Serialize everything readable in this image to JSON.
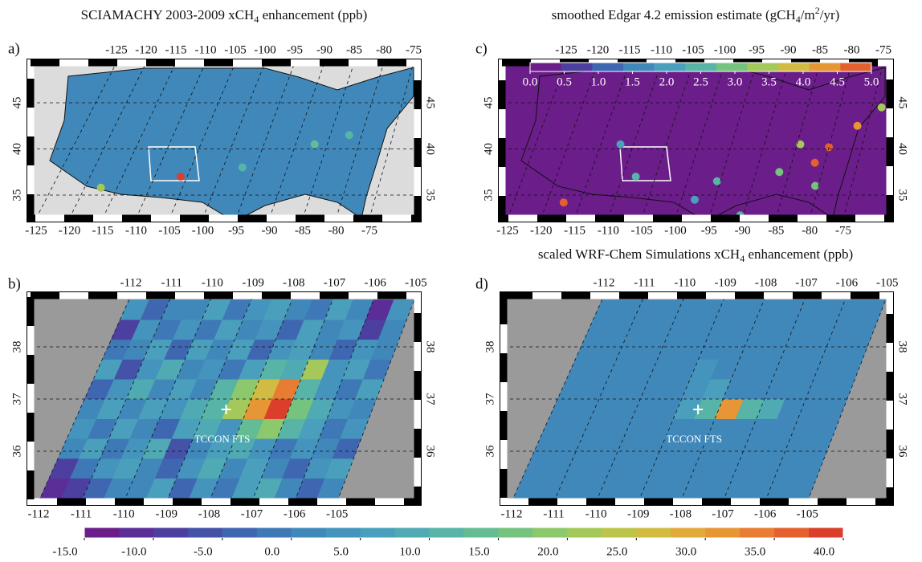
{
  "panels": [
    {
      "label": "a)",
      "title": [
        "SCIAMACHY 2003-2009 xCH",
        "4",
        " enhancement (ppb)"
      ],
      "lon_ticks": [
        -125,
        -120,
        -115,
        -110,
        -105,
        -100,
        -95,
        -90,
        -85,
        -80,
        -75
      ],
      "lat_ticks": [
        45,
        40,
        35
      ],
      "hotspots": [
        {
          "lon": -106,
          "lat": 37,
          "value": 38
        },
        {
          "lon": -117.5,
          "lat": 35.8,
          "value": 22
        },
        {
          "lon": -87,
          "lat": 40.5,
          "value": 14
        },
        {
          "lon": -82,
          "lat": 41.5,
          "value": 12
        },
        {
          "lon": -97,
          "lat": 38,
          "value": 10
        }
      ]
    },
    {
      "label": "b)",
      "lon_ticks": [
        -112,
        -111,
        -110,
        -109,
        -108,
        -107,
        -106,
        -105
      ],
      "lat_ticks": [
        38,
        37,
        36
      ],
      "lats": [
        35.1,
        35.48,
        35.86,
        36.24,
        36.62,
        37.0,
        37.38,
        37.76,
        38.14,
        38.52
      ],
      "lons": [
        -112,
        -111.5,
        -111,
        -110.5,
        -110,
        -109.5,
        -109,
        -108.5,
        -108,
        -107.5,
        -107,
        -106.5,
        -106,
        -105.5
      ],
      "values": [
        [
          -12,
          -10,
          -4,
          0,
          2,
          6,
          -3,
          3,
          -2,
          6,
          8,
          2,
          -4,
          1
        ],
        [
          -8,
          -2,
          3,
          5,
          0,
          -3,
          4,
          8,
          2,
          5,
          0,
          -5,
          3,
          6
        ],
        [
          0,
          5,
          -2,
          3,
          8,
          -6,
          2,
          5,
          9,
          3,
          -2,
          4,
          1,
          -3
        ],
        [
          3,
          -1,
          6,
          2,
          -4,
          5,
          9,
          4,
          14,
          18,
          10,
          5,
          -2,
          4
        ],
        [
          2,
          6,
          0,
          7,
          3,
          8,
          12,
          22,
          30,
          40,
          15,
          9,
          3,
          0
        ],
        [
          -3,
          4,
          8,
          1,
          6,
          2,
          10,
          18,
          25,
          33,
          12,
          4,
          -1,
          5
        ],
        [
          5,
          -6,
          3,
          9,
          0,
          4,
          -2,
          6,
          10,
          8,
          20,
          3,
          6,
          -2
        ],
        [
          -2,
          2,
          7,
          -3,
          5,
          1,
          6,
          -4,
          3,
          5,
          2,
          -5,
          4,
          1
        ],
        [
          -10,
          3,
          -1,
          4,
          -2,
          6,
          0,
          3,
          -3,
          7,
          1,
          4,
          -8,
          2
        ],
        [
          4,
          -3,
          2,
          0,
          5,
          -1,
          3,
          6,
          2,
          -2,
          5,
          0,
          -12,
          3
        ]
      ],
      "annotation": "TCCON FTS",
      "site": {
        "lon": -108.5,
        "lat": 36.8
      }
    },
    {
      "label": "c)",
      "title": [
        "smoothed Edgar 4.2 emission estimate (gCH",
        "4",
        "/m",
        "2",
        "/yr)"
      ],
      "lon_ticks": [
        -125,
        -120,
        -115,
        -110,
        -105,
        -100,
        -95,
        -90,
        -85,
        -80,
        -75
      ],
      "lat_ticks": [
        45,
        40,
        35
      ],
      "colorbar": {
        "clim": [
          0,
          5
        ],
        "colors": [
          "#6b1d8a",
          "#4c3fa0",
          "#3f66b0",
          "#4188ba",
          "#4aa0bc",
          "#58b4a6",
          "#76c37f",
          "#a4c95a",
          "#d2bb42",
          "#e79636",
          "#e4612f"
        ],
        "ticks": [
          {
            "value": 0,
            "label": "0.0"
          },
          {
            "value": 0.5,
            "label": "0.5"
          },
          {
            "value": 1,
            "label": "1.0"
          },
          {
            "value": 1.5,
            "label": "1.5"
          },
          {
            "value": 2,
            "label": "2.0"
          },
          {
            "value": 2.5,
            "label": "2.5"
          },
          {
            "value": 3,
            "label": "3.0"
          },
          {
            "value": 3.5,
            "label": "3.5"
          },
          {
            "value": 4,
            "label": "4.0"
          },
          {
            "value": 4.5,
            "label": "4.5"
          },
          {
            "value": 5,
            "label": "5.0"
          }
        ]
      },
      "hotspots": [
        {
          "lon": -117.5,
          "lat": 34.2,
          "value": 4.8
        },
        {
          "lon": -108,
          "lat": 37,
          "value": 2.5
        },
        {
          "lon": -112,
          "lat": 40.5,
          "value": 2.2
        },
        {
          "lon": -95.5,
          "lat": 36.5,
          "value": 2.3
        },
        {
          "lon": -80,
          "lat": 40.2,
          "value": 5
        },
        {
          "lon": -81.5,
          "lat": 38.5,
          "value": 4.6
        },
        {
          "lon": -76.5,
          "lat": 42.5,
          "value": 4.4
        },
        {
          "lon": -84.5,
          "lat": 40.5,
          "value": 3.5
        },
        {
          "lon": -86.5,
          "lat": 37.5,
          "value": 2.8
        },
        {
          "lon": -73.5,
          "lat": 44.5,
          "value": 3.2
        },
        {
          "lon": -90.5,
          "lat": 32.8,
          "value": 2.5
        },
        {
          "lon": -98,
          "lat": 34.5,
          "value": 2
        },
        {
          "lon": -80.5,
          "lat": 36,
          "value": 3
        }
      ]
    },
    {
      "label": "d)",
      "title": [
        "scaled WRF-Chem Simulations xCH",
        "4",
        " enhancement (ppb)"
      ],
      "lon_ticks": [
        -112,
        -111,
        -110,
        -109,
        -108,
        -107,
        -106,
        -105
      ],
      "lat_ticks": [
        38,
        37,
        36
      ],
      "lats": [
        35.1,
        35.48,
        35.86,
        36.24,
        36.62,
        37.0,
        37.38,
        37.76,
        38.14,
        38.52
      ],
      "lons": [
        -112,
        -111.5,
        -111,
        -110.5,
        -110,
        -109.5,
        -109,
        -108.5,
        -108,
        -107.5,
        -107,
        -106.5,
        -106,
        -105.5
      ],
      "values": [
        [
          0,
          0,
          0,
          0,
          0,
          0,
          0,
          0,
          0,
          0,
          0,
          0,
          0,
          0
        ],
        [
          0,
          0,
          0,
          0,
          0,
          0,
          0,
          0,
          0,
          0,
          0,
          0,
          0,
          0
        ],
        [
          0,
          0,
          0,
          0,
          0,
          0,
          0,
          0,
          0,
          0,
          0,
          0,
          0,
          0
        ],
        [
          0,
          0,
          0,
          0,
          0,
          0,
          0,
          0,
          0,
          0,
          0,
          0,
          0,
          0
        ],
        [
          0,
          0,
          0,
          0,
          0,
          0,
          5,
          10,
          30,
          12,
          8,
          0,
          0,
          0
        ],
        [
          0,
          0,
          0,
          0,
          0,
          0,
          4,
          6,
          0,
          0,
          0,
          0,
          0,
          0
        ],
        [
          0,
          0,
          0,
          0,
          0,
          0,
          3,
          0,
          0,
          0,
          0,
          0,
          0,
          0
        ],
        [
          0,
          0,
          0,
          0,
          0,
          0,
          0,
          0,
          0,
          0,
          0,
          0,
          0,
          0
        ],
        [
          0,
          0,
          0,
          0,
          0,
          0,
          0,
          0,
          0,
          0,
          0,
          0,
          0,
          0
        ],
        [
          0,
          0,
          0,
          0,
          0,
          0,
          0,
          0,
          0,
          0,
          0,
          0,
          0,
          0
        ]
      ],
      "annotation": "TCCON FTS",
      "site": {
        "lon": -108.5,
        "lat": 36.8
      }
    }
  ],
  "colorbar": {
    "clim": [
      -15,
      40
    ],
    "colors": [
      "#6b1d8a",
      "#5b2d96",
      "#4c3fa0",
      "#4452a8",
      "#3f66b0",
      "#3e78b6",
      "#4188ba",
      "#4594bd",
      "#4aa0bc",
      "#50aab3",
      "#58b4a6",
      "#64bc94",
      "#76c37f",
      "#8cc86c",
      "#a4c95a",
      "#bcc54b",
      "#d2bb42",
      "#e0aa3c",
      "#e79636",
      "#e87c32",
      "#e4612f",
      "#dc3e2c"
    ],
    "ticks": [
      {
        "value": -15,
        "label": "-15.0"
      },
      {
        "value": -10,
        "label": "-10.0"
      },
      {
        "value": -5,
        "label": "-5.0"
      },
      {
        "value": 0,
        "label": "0.0"
      },
      {
        "value": 5,
        "label": "5.0"
      },
      {
        "value": 10,
        "label": "10.0"
      },
      {
        "value": 15,
        "label": "15.0"
      },
      {
        "value": 20,
        "label": "20.0"
      },
      {
        "value": 25,
        "label": "25.0"
      },
      {
        "value": 30,
        "label": "30.0"
      },
      {
        "value": 35,
        "label": "35.0"
      },
      {
        "value": 40,
        "label": "40.0"
      }
    ]
  }
}
